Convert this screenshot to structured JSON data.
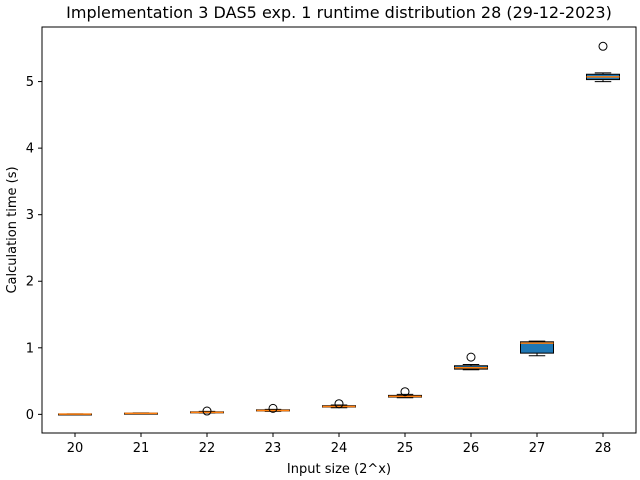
{
  "chart_data": {
    "type": "box",
    "title": "Implementation 3 DAS5 exp. 1 runtime distribution 28 (29-12-2023)",
    "xlabel": "Input size (2^x)",
    "ylabel": "Calculation time (s)",
    "ylim": [
      -0.28,
      5.82
    ],
    "yticks": [
      0,
      1,
      2,
      3,
      4,
      5
    ],
    "grid": false,
    "colors": {
      "box_fill": "#1f77b4",
      "median": "#ff7f0e",
      "edge": "#000000"
    },
    "categories": [
      "20",
      "21",
      "22",
      "23",
      "24",
      "25",
      "26",
      "27",
      "28"
    ],
    "boxes": [
      {
        "whislo": 0.0,
        "q1": 0.003,
        "med": 0.004,
        "q3": 0.006,
        "whishi": 0.008,
        "fliers": []
      },
      {
        "whislo": 0.008,
        "q1": 0.012,
        "med": 0.014,
        "q3": 0.018,
        "whishi": 0.022,
        "fliers": []
      },
      {
        "whislo": 0.02,
        "q1": 0.025,
        "med": 0.03,
        "q3": 0.038,
        "whishi": 0.045,
        "fliers": [
          0.05
        ]
      },
      {
        "whislo": 0.045,
        "q1": 0.052,
        "med": 0.058,
        "q3": 0.068,
        "whishi": 0.075,
        "fliers": [
          0.09
        ]
      },
      {
        "whislo": 0.1,
        "q1": 0.11,
        "med": 0.118,
        "q3": 0.13,
        "whishi": 0.14,
        "fliers": [
          0.16
        ]
      },
      {
        "whislo": 0.25,
        "q1": 0.26,
        "med": 0.27,
        "q3": 0.285,
        "whishi": 0.3,
        "fliers": [
          0.34
        ]
      },
      {
        "whislo": 0.67,
        "q1": 0.68,
        "med": 0.7,
        "q3": 0.73,
        "whishi": 0.75,
        "fliers": [
          0.86
        ]
      },
      {
        "whislo": 0.88,
        "q1": 0.92,
        "med": 1.07,
        "q3": 1.09,
        "whishi": 1.1,
        "fliers": []
      },
      {
        "whislo": 5.0,
        "q1": 5.03,
        "med": 5.07,
        "q3": 5.11,
        "whishi": 5.13,
        "fliers": [
          5.53
        ]
      }
    ]
  }
}
